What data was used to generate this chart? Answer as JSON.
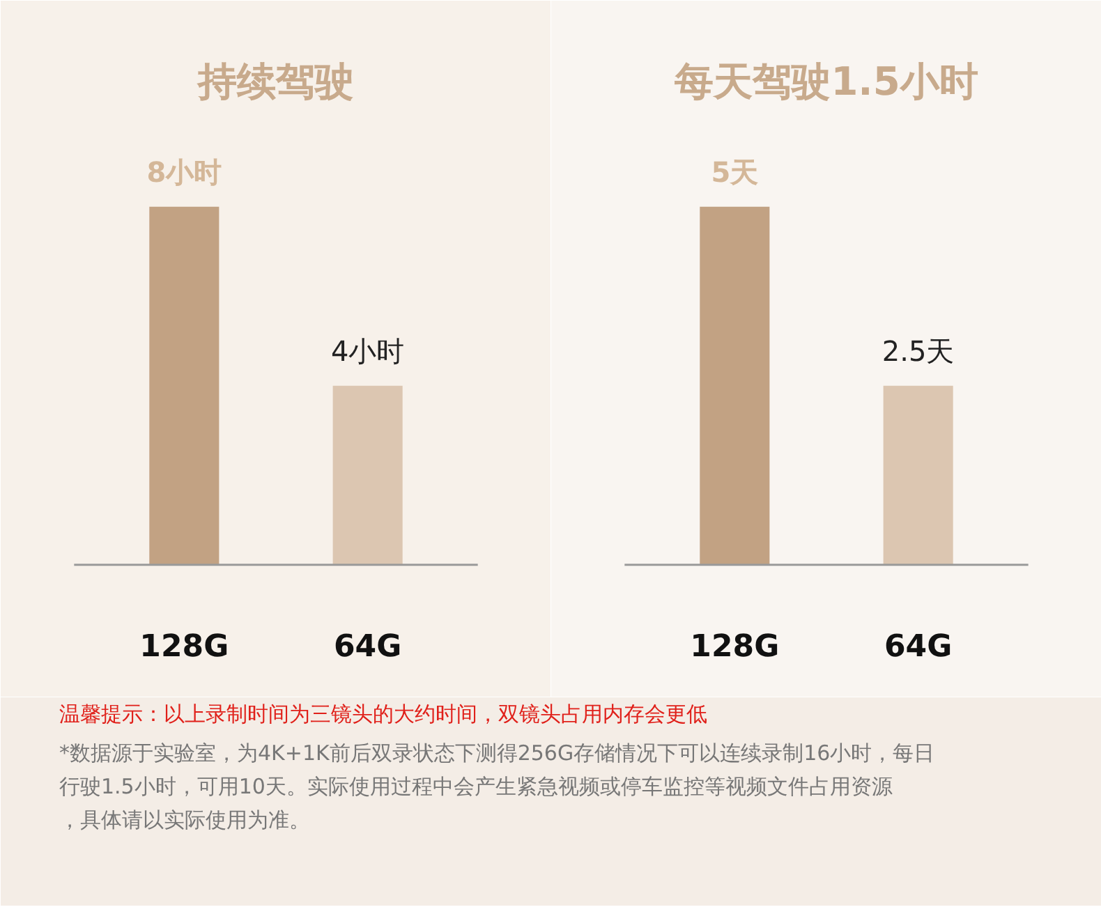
{
  "chart_data": [
    {
      "type": "bar",
      "title": "持续驾驶",
      "categories": [
        "128G",
        "64G"
      ],
      "values": [
        8,
        4
      ],
      "colors": [
        "#c2a283",
        "#dcc6b1"
      ],
      "value_labels": [
        "8小时",
        "4小时"
      ],
      "annotations": [
        "温馨提示：以上录制时间为三镜头的大约时间，双镜头占用内存会更低",
        "*数据源于实验室，为4K+1K前后双录状态下测得256G存储情况下可以连续录制16小时，每日行驶1.5小时，可用10天。实际使用过程中会产生紧急视频或停车监控等视频文件占用资源，具体请以实际使用为准。"
      ]
    },
    {
      "type": "bar",
      "title": "每天驾驶1.5小时",
      "categories": [
        "128G",
        "64G"
      ],
      "values": [
        5,
        2.5
      ],
      "colors": [
        "#c2a283",
        "#dcc6b1"
      ],
      "value_labels": [
        "5天",
        "2.5天"
      ]
    }
  ]
}
